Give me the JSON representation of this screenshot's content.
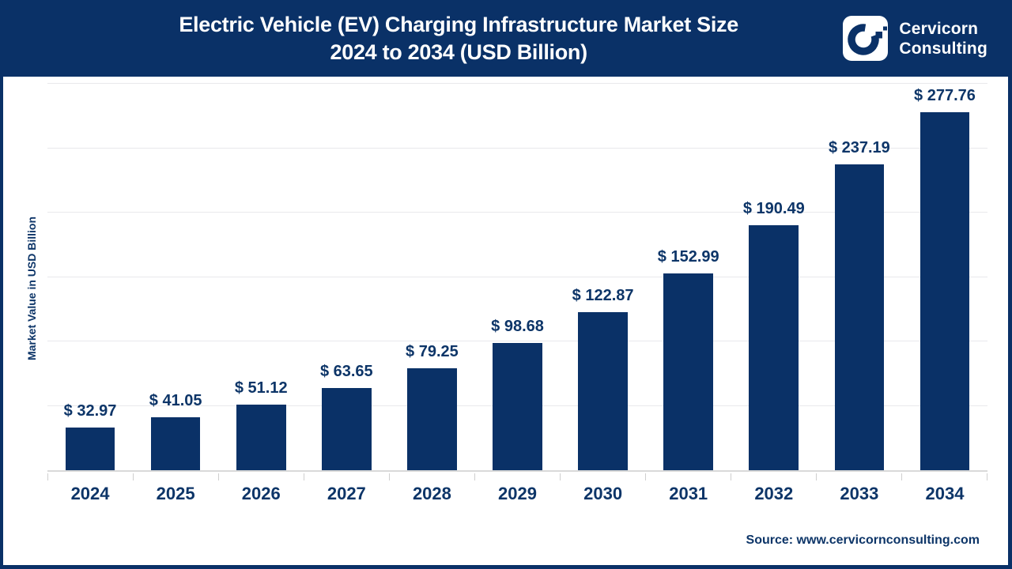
{
  "header": {
    "title_line1": "Electric Vehicle (EV) Charging Infrastructure Market Size",
    "title_line2": "2024 to 2034 (USD Billion)",
    "brand_line1": "Cervicorn",
    "brand_line2": "Consulting"
  },
  "colors": {
    "navy": "#0a3167",
    "label_text": "#0d3568",
    "gridline": "#e9e9ec",
    "axis_line": "#d9d9d9",
    "background": "#ffffff"
  },
  "chart_data": {
    "type": "bar",
    "title": "Electric Vehicle (EV) Charging Infrastructure Market Size 2024 to 2034 (USD Billion)",
    "categories": [
      "2024",
      "2025",
      "2026",
      "2027",
      "2028",
      "2029",
      "2030",
      "2031",
      "2032",
      "2033",
      "2034"
    ],
    "values": [
      32.97,
      41.05,
      51.12,
      63.65,
      79.25,
      98.68,
      122.87,
      152.99,
      190.49,
      237.19,
      277.76
    ],
    "value_labels": [
      "$ 32.97",
      "$ 41.05",
      "$ 51.12",
      "$ 63.65",
      "$ 79.25",
      "$ 98.68",
      "$ 122.87",
      "$ 152.99",
      "$ 190.49",
      "$ 237.19",
      "$ 277.76"
    ],
    "xlabel": "",
    "ylabel": "Market Value in USD Billion",
    "ylim": [
      0,
      300
    ],
    "grid": true,
    "gridline_step": 50,
    "legend_position": "none",
    "bar_color": "#0a3167"
  },
  "footer": {
    "source": "Source: www.cervicornconsulting.com"
  }
}
